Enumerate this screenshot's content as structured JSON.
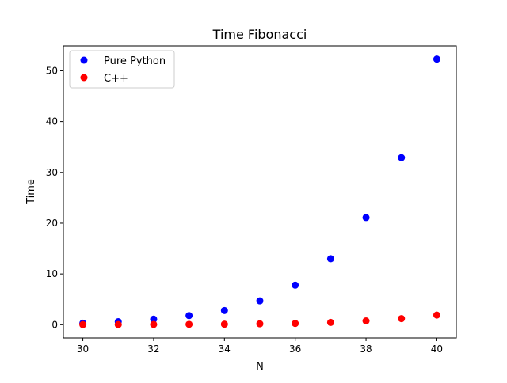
{
  "chart_data": {
    "type": "scatter",
    "title": "Time Fibonacci",
    "xlabel": "N",
    "ylabel": "Time",
    "xlim": [
      29.45,
      40.55
    ],
    "ylim": [
      -2.6,
      54.9
    ],
    "xticks": [
      30,
      32,
      34,
      36,
      38,
      40
    ],
    "yticks": [
      0,
      10,
      20,
      30,
      40,
      50
    ],
    "grid": false,
    "legend": "top-left",
    "series": [
      {
        "name": "Pure Python",
        "color": "#0000ff",
        "x": [
          30,
          31,
          32,
          33,
          34,
          35,
          36,
          37,
          38,
          39,
          40
        ],
        "y": [
          0.3,
          0.6,
          1.1,
          1.8,
          2.8,
          4.7,
          7.8,
          13.0,
          21.1,
          32.9,
          52.3
        ]
      },
      {
        "name": "C++",
        "color": "#ff0000",
        "x": [
          30,
          31,
          32,
          33,
          34,
          35,
          36,
          37,
          38,
          39,
          40
        ],
        "y": [
          0.02,
          0.03,
          0.05,
          0.07,
          0.1,
          0.18,
          0.25,
          0.45,
          0.75,
          1.2,
          1.9
        ]
      }
    ]
  }
}
